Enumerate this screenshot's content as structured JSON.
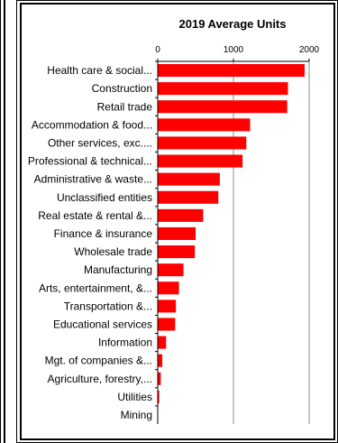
{
  "chart_data": {
    "type": "bar",
    "orientation": "horizontal",
    "title": "2019 Average Units",
    "xlim": [
      0,
      2000
    ],
    "xticks": [
      "0",
      "1000",
      "2000"
    ],
    "grid": true,
    "bar_color": "#ff0000",
    "categories": [
      "Health care & social...",
      "Construction",
      "Retail trade",
      "Accommodation & food...",
      "Other services, exc....",
      "Professional & technical...",
      "Administrative & waste...",
      "Unclassified entities",
      "Real estate & rental &...",
      "Finance & insurance",
      "Wholesale trade",
      "Manufacturing",
      "Arts, entertainment, &...",
      "Transportation &...",
      "Educational services",
      "Information",
      "Mgt. of companies &...",
      "Agriculture, forestry,...",
      "Utilities",
      "Mining"
    ],
    "values": [
      1940,
      1720,
      1710,
      1220,
      1170,
      1120,
      820,
      800,
      600,
      500,
      490,
      340,
      280,
      240,
      230,
      110,
      60,
      40,
      20,
      5
    ]
  }
}
